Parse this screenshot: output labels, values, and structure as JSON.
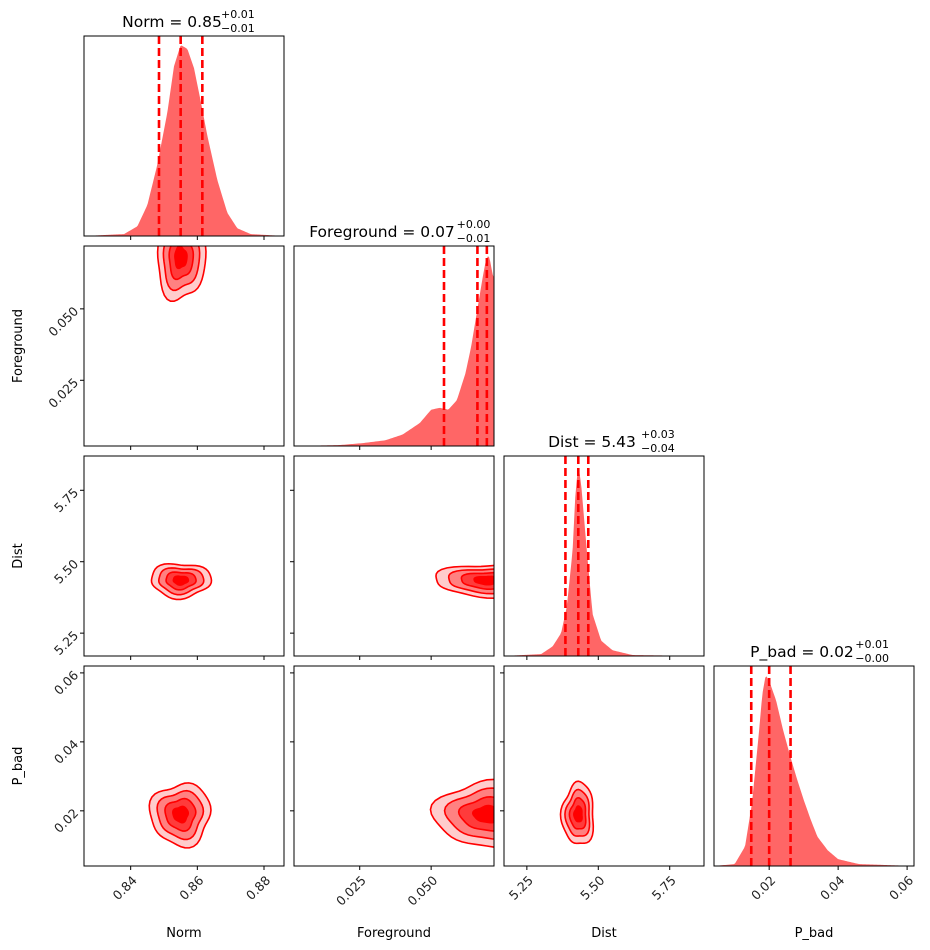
{
  "chart_data": {
    "type": "corner",
    "color": "#ff0000",
    "fill_color": "#ff6666",
    "parameters": [
      {
        "name": "Norm",
        "label": "Norm",
        "range": [
          0.826,
          0.886
        ],
        "ticks": [
          0.84,
          0.86,
          0.88
        ],
        "tick_labels": [
          "0.84",
          "0.86",
          "0.88"
        ]
      },
      {
        "name": "Foreground",
        "label": "Foreground",
        "range": [
          0.002,
          0.072
        ],
        "ticks": [
          0.025,
          0.05
        ],
        "tick_labels": [
          "0.025",
          "0.050"
        ]
      },
      {
        "name": "Dist",
        "label": "Dist",
        "range": [
          5.17,
          5.87
        ],
        "ticks": [
          5.25,
          5.5,
          5.75
        ],
        "tick_labels": [
          "5.25",
          "5.50",
          "5.75"
        ]
      },
      {
        "name": "P_bad",
        "label": "P_bad",
        "range": [
          0.004,
          0.062
        ],
        "ticks": [
          0.02,
          0.04,
          0.06
        ],
        "tick_labels": [
          "0.02",
          "0.04",
          "0.06"
        ]
      }
    ],
    "titles": [
      {
        "prefix": "Norm = ",
        "value": "0.85",
        "upper": "+0.01",
        "lower": "−0.01"
      },
      {
        "prefix": "Foreground = ",
        "value": "0.07",
        "upper": "+0.00",
        "lower": "−0.01"
      },
      {
        "prefix": "Dist = ",
        "value": "5.43",
        "upper": "+0.03",
        "lower": "−0.04"
      },
      {
        "prefix": "P_bad = ",
        "value": "0.02",
        "upper": "+0.01",
        "lower": "−0.00"
      }
    ],
    "quantiles": [
      [
        0.8485,
        0.855,
        0.8615
      ],
      [
        0.0545,
        0.0662,
        0.0695
      ],
      [
        5.385,
        5.43,
        5.465
      ],
      [
        0.0148,
        0.02,
        0.0262
      ]
    ],
    "marginals": [
      {
        "x": [
          0.826,
          0.838,
          0.842,
          0.845,
          0.848,
          0.851,
          0.853,
          0.855,
          0.857,
          0.859,
          0.861,
          0.863,
          0.866,
          0.869,
          0.872,
          0.876,
          0.886
        ],
        "density": [
          0,
          0.01,
          0.05,
          0.16,
          0.37,
          0.64,
          0.88,
          0.99,
          0.97,
          0.87,
          0.7,
          0.52,
          0.29,
          0.12,
          0.04,
          0.01,
          0
        ]
      },
      {
        "x": [
          0.002,
          0.018,
          0.026,
          0.034,
          0.04,
          0.046,
          0.05,
          0.053,
          0.056,
          0.059,
          0.062,
          0.064,
          0.066,
          0.068,
          0.069,
          0.07,
          0.0705,
          0.0715,
          0.072
        ],
        "density": [
          0,
          0.005,
          0.015,
          0.03,
          0.06,
          0.12,
          0.19,
          0.2,
          0.19,
          0.24,
          0.38,
          0.52,
          0.7,
          0.88,
          0.96,
          1.0,
          0.98,
          0.9,
          0.88
        ]
      },
      {
        "x": [
          5.17,
          5.3,
          5.34,
          5.37,
          5.39,
          5.41,
          5.42,
          5.43,
          5.44,
          5.46,
          5.48,
          5.51,
          5.55,
          5.62,
          5.87
        ],
        "density": [
          0,
          0.01,
          0.05,
          0.12,
          0.26,
          0.55,
          0.85,
          1.0,
          0.9,
          0.55,
          0.22,
          0.08,
          0.03,
          0.005,
          0
        ]
      },
      {
        "x": [
          0.004,
          0.01,
          0.013,
          0.015,
          0.017,
          0.018,
          0.019,
          0.02,
          0.022,
          0.024,
          0.026,
          0.028,
          0.03,
          0.032,
          0.034,
          0.037,
          0.04,
          0.046,
          0.062
        ],
        "density": [
          0,
          0.01,
          0.1,
          0.32,
          0.68,
          0.88,
          0.98,
          0.95,
          0.85,
          0.7,
          0.57,
          0.45,
          0.34,
          0.24,
          0.15,
          0.08,
          0.035,
          0.01,
          0
        ]
      }
    ],
    "joint_contours": [
      {
        "row": 1,
        "col": 0,
        "center": [
          0.855,
          0.068
        ],
        "sigma": [
          0.0036,
          0.0075
        ],
        "clip_y_max": 0.072
      },
      {
        "row": 2,
        "col": 0,
        "center": [
          0.855,
          5.435
        ],
        "sigma": [
          0.0045,
          0.03
        ]
      },
      {
        "row": 2,
        "col": 1,
        "center": [
          0.0695,
          5.435
        ],
        "sigma": [
          0.009,
          0.028
        ],
        "clip_x_max": 0.072
      },
      {
        "row": 3,
        "col": 0,
        "center": [
          0.855,
          0.019
        ],
        "sigma": [
          0.0045,
          0.0045
        ]
      },
      {
        "row": 3,
        "col": 1,
        "center": [
          0.0695,
          0.019
        ],
        "sigma": [
          0.009,
          0.0048
        ],
        "clip_x_max": 0.072
      },
      {
        "row": 3,
        "col": 2,
        "center": [
          5.43,
          0.019
        ],
        "sigma": [
          0.028,
          0.0045
        ]
      }
    ],
    "contour_levels_sigma": [
      0.5,
      1.0,
      1.5,
      2.0
    ],
    "contour_fill_alphas": [
      0.2,
      0.4,
      0.6,
      0.85,
      1.0
    ]
  }
}
